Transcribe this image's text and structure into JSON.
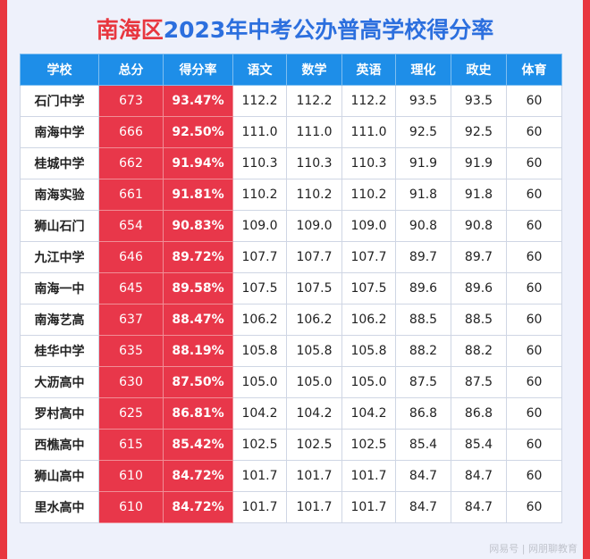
{
  "title": {
    "part1": "南海区",
    "part2": "2023年中考公办普高学校得分率"
  },
  "headers": [
    "学校",
    "总分",
    "得分率",
    "语文",
    "数学",
    "英语",
    "理化",
    "政史",
    "体育"
  ],
  "rows": [
    [
      "石门中学",
      "673",
      "93.47%",
      "112.2",
      "112.2",
      "112.2",
      "93.5",
      "93.5",
      "60"
    ],
    [
      "南海中学",
      "666",
      "92.50%",
      "111.0",
      "111.0",
      "111.0",
      "92.5",
      "92.5",
      "60"
    ],
    [
      "桂城中学",
      "662",
      "91.94%",
      "110.3",
      "110.3",
      "110.3",
      "91.9",
      "91.9",
      "60"
    ],
    [
      "南海实验",
      "661",
      "91.81%",
      "110.2",
      "110.2",
      "110.2",
      "91.8",
      "91.8",
      "60"
    ],
    [
      "狮山石门",
      "654",
      "90.83%",
      "109.0",
      "109.0",
      "109.0",
      "90.8",
      "90.8",
      "60"
    ],
    [
      "九江中学",
      "646",
      "89.72%",
      "107.7",
      "107.7",
      "107.7",
      "89.7",
      "89.7",
      "60"
    ],
    [
      "南海一中",
      "645",
      "89.58%",
      "107.5",
      "107.5",
      "107.5",
      "89.6",
      "89.6",
      "60"
    ],
    [
      "南海艺高",
      "637",
      "88.47%",
      "106.2",
      "106.2",
      "106.2",
      "88.5",
      "88.5",
      "60"
    ],
    [
      "桂华中学",
      "635",
      "88.19%",
      "105.8",
      "105.8",
      "105.8",
      "88.2",
      "88.2",
      "60"
    ],
    [
      "大沥高中",
      "630",
      "87.50%",
      "105.0",
      "105.0",
      "105.0",
      "87.5",
      "87.5",
      "60"
    ],
    [
      "罗村高中",
      "625",
      "86.81%",
      "104.2",
      "104.2",
      "104.2",
      "86.8",
      "86.8",
      "60"
    ],
    [
      "西樵高中",
      "615",
      "85.42%",
      "102.5",
      "102.5",
      "102.5",
      "85.4",
      "85.4",
      "60"
    ],
    [
      "狮山高中",
      "610",
      "84.72%",
      "101.7",
      "101.7",
      "101.7",
      "84.7",
      "84.7",
      "60"
    ],
    [
      "里水高中",
      "610",
      "84.72%",
      "101.7",
      "101.7",
      "101.7",
      "84.7",
      "84.7",
      "60"
    ]
  ],
  "watermark": "网易号 | 网朋聊教育",
  "colors": {
    "header_bg": "#1e8ee8",
    "highlight_bg": "#e8374a",
    "title_red": "#e8373f",
    "title_blue": "#2c6fde"
  }
}
